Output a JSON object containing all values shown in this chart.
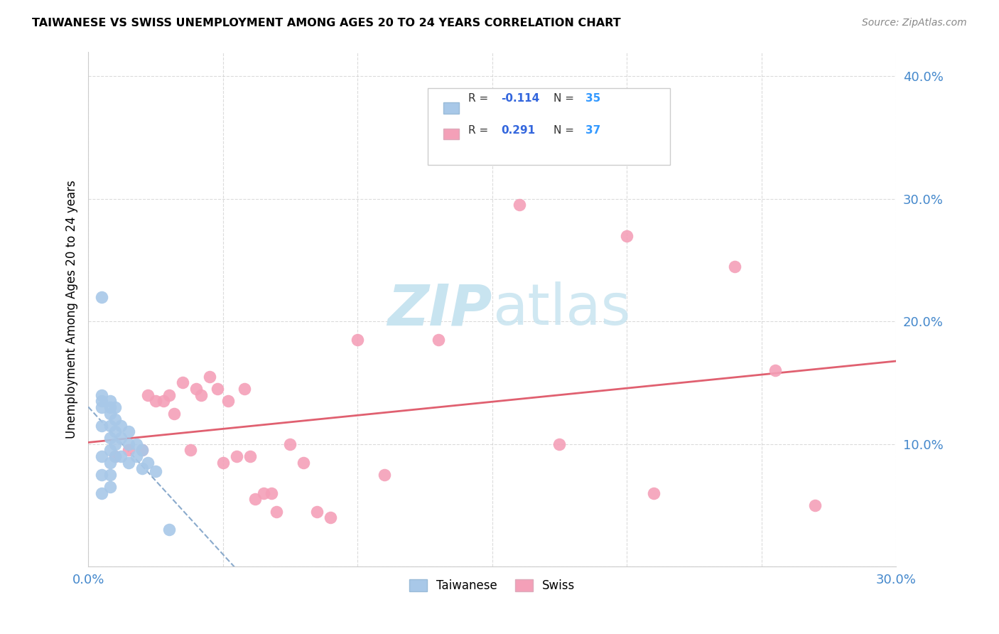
{
  "title": "TAIWANESE VS SWISS UNEMPLOYMENT AMONG AGES 20 TO 24 YEARS CORRELATION CHART",
  "source": "Source: ZipAtlas.com",
  "ylabel": "Unemployment Among Ages 20 to 24 years",
  "xlim": [
    0.0,
    0.3
  ],
  "ylim": [
    0.0,
    0.42
  ],
  "xticks": [
    0.0,
    0.05,
    0.1,
    0.15,
    0.2,
    0.25,
    0.3
  ],
  "yticks": [
    0.0,
    0.1,
    0.2,
    0.3,
    0.4
  ],
  "taiwan_R": "-0.114",
  "taiwan_N": "35",
  "swiss_R": "0.291",
  "swiss_N": "37",
  "taiwan_color": "#a8c8e8",
  "swiss_color": "#f4a0b8",
  "taiwan_line_color": "#8aaacc",
  "swiss_line_color": "#e06070",
  "grid_color": "#cccccc",
  "watermark_zip": "ZIP",
  "watermark_atlas": "atlas",
  "watermark_color": "#c8e4f0",
  "taiwan_x": [
    0.005,
    0.005,
    0.005,
    0.005,
    0.005,
    0.005,
    0.005,
    0.005,
    0.008,
    0.008,
    0.008,
    0.008,
    0.008,
    0.008,
    0.008,
    0.008,
    0.008,
    0.01,
    0.01,
    0.01,
    0.01,
    0.01,
    0.012,
    0.012,
    0.012,
    0.015,
    0.015,
    0.015,
    0.018,
    0.018,
    0.02,
    0.02,
    0.022,
    0.025,
    0.03
  ],
  "taiwan_y": [
    0.22,
    0.14,
    0.135,
    0.13,
    0.115,
    0.09,
    0.075,
    0.06,
    0.135,
    0.13,
    0.125,
    0.115,
    0.105,
    0.095,
    0.085,
    0.075,
    0.065,
    0.13,
    0.12,
    0.11,
    0.1,
    0.09,
    0.115,
    0.105,
    0.09,
    0.11,
    0.1,
    0.085,
    0.1,
    0.09,
    0.095,
    0.08,
    0.085,
    0.078,
    0.03
  ],
  "swiss_x": [
    0.01,
    0.015,
    0.02,
    0.022,
    0.025,
    0.028,
    0.03,
    0.032,
    0.035,
    0.038,
    0.04,
    0.042,
    0.045,
    0.048,
    0.05,
    0.052,
    0.055,
    0.058,
    0.06,
    0.062,
    0.065,
    0.068,
    0.07,
    0.075,
    0.08,
    0.085,
    0.09,
    0.1,
    0.11,
    0.13,
    0.16,
    0.175,
    0.2,
    0.21,
    0.24,
    0.255,
    0.27
  ],
  "swiss_y": [
    0.09,
    0.095,
    0.095,
    0.14,
    0.135,
    0.135,
    0.14,
    0.125,
    0.15,
    0.095,
    0.145,
    0.14,
    0.155,
    0.145,
    0.085,
    0.135,
    0.09,
    0.145,
    0.09,
    0.055,
    0.06,
    0.06,
    0.045,
    0.1,
    0.085,
    0.045,
    0.04,
    0.185,
    0.075,
    0.185,
    0.295,
    0.1,
    0.27,
    0.06,
    0.245,
    0.16,
    0.05
  ],
  "taiwan_trendline_x0": 0.0,
  "taiwan_trendline_x1": 0.08,
  "swiss_trendline_x0": 0.0,
  "swiss_trendline_x1": 0.3
}
